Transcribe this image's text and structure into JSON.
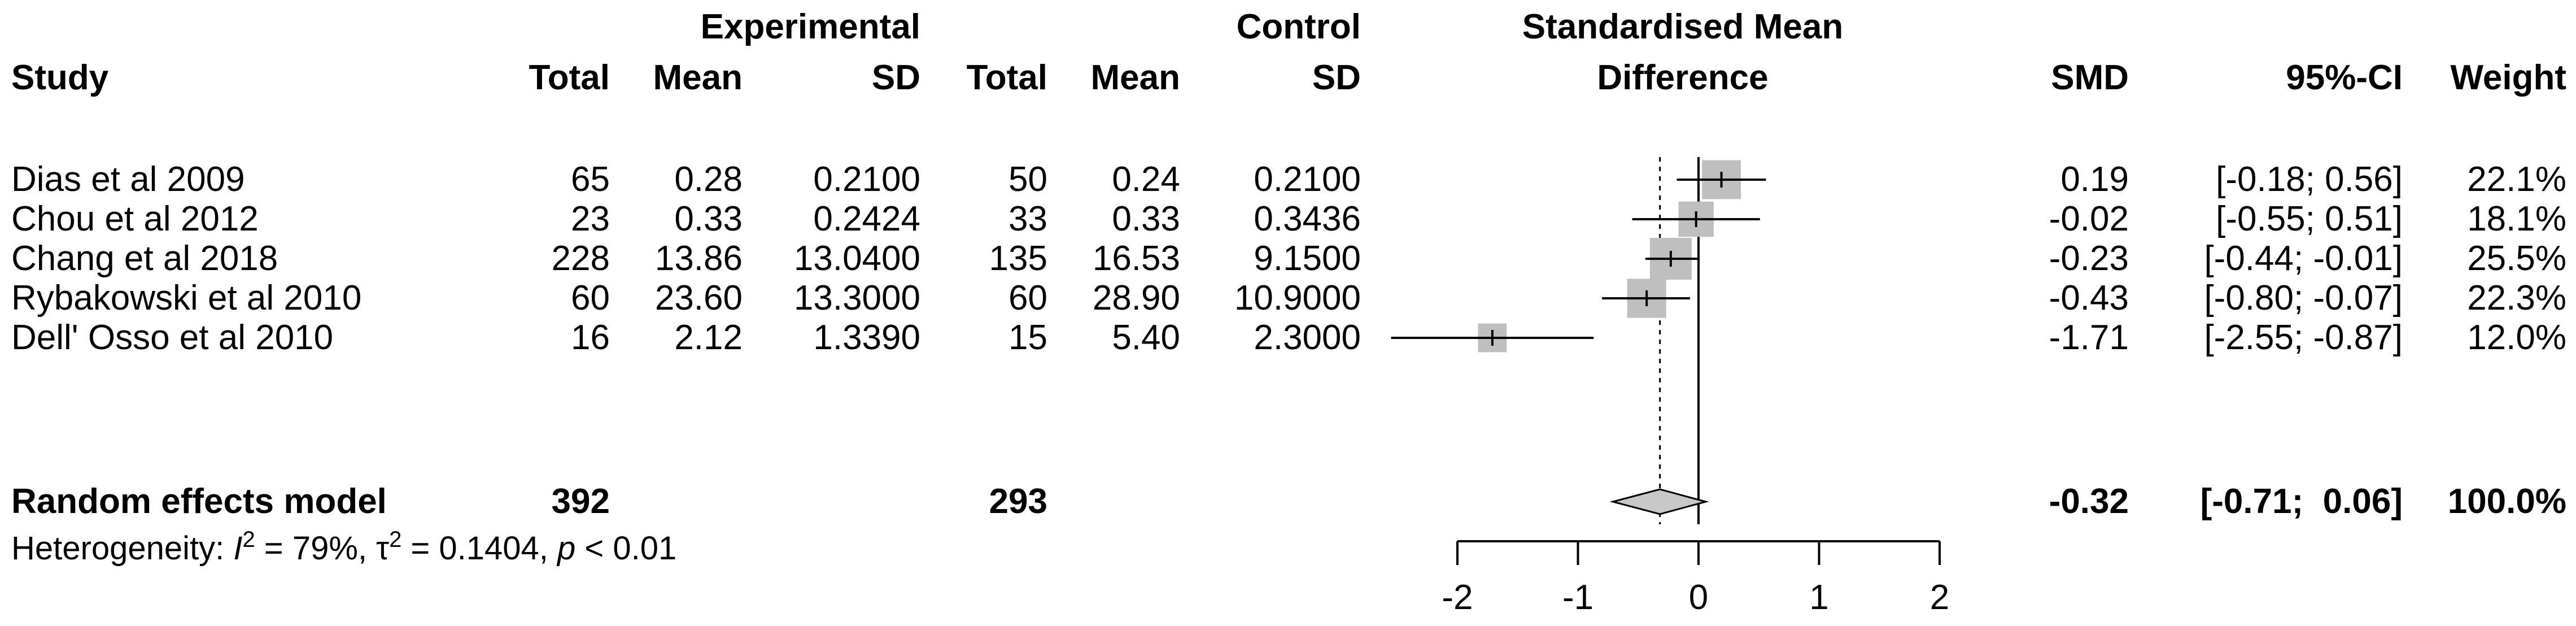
{
  "chart_data": {
    "type": "forest",
    "headers": {
      "study": "Study",
      "experimental": "Experimental",
      "control": "Control",
      "total": "Total",
      "mean": "Mean",
      "sd": "SD",
      "effect_line1": "Standardised Mean",
      "effect_line2": "Difference",
      "smd": "SMD",
      "ci": "95%-CI",
      "weight": "Weight"
    },
    "studies": [
      {
        "study": "Dias et al 2009",
        "e_total": "65",
        "e_mean": "0.28",
        "e_sd": "0.2100",
        "c_total": "50",
        "c_mean": "0.24",
        "c_sd": "0.2100",
        "smd": 0.19,
        "lower": -0.18,
        "upper": 0.56,
        "weight": 22.1,
        "smd_text": "0.19",
        "ci_text": "[-0.18;  0.56]",
        "weight_text": "22.1%"
      },
      {
        "study": "Chou et al 2012",
        "e_total": "23",
        "e_mean": "0.33",
        "e_sd": "0.2424",
        "c_total": "33",
        "c_mean": "0.33",
        "c_sd": "0.3436",
        "smd": -0.02,
        "lower": -0.55,
        "upper": 0.51,
        "weight": 18.1,
        "smd_text": "-0.02",
        "ci_text": "[-0.55;  0.51]",
        "weight_text": "18.1%"
      },
      {
        "study": "Chang et al 2018",
        "e_total": "228",
        "e_mean": "13.86",
        "e_sd": "13.0400",
        "c_total": "135",
        "c_mean": "16.53",
        "c_sd": "9.1500",
        "smd": -0.23,
        "lower": -0.44,
        "upper": -0.01,
        "weight": 25.5,
        "smd_text": "-0.23",
        "ci_text": "[-0.44; -0.01]",
        "weight_text": "25.5%"
      },
      {
        "study": "Rybakowski et al 2010",
        "e_total": "60",
        "e_mean": "23.60",
        "e_sd": "13.3000",
        "c_total": "60",
        "c_mean": "28.90",
        "c_sd": "10.9000",
        "smd": -0.43,
        "lower": -0.8,
        "upper": -0.07,
        "weight": 22.3,
        "smd_text": "-0.43",
        "ci_text": "[-0.80; -0.07]",
        "weight_text": "22.3%"
      },
      {
        "study": "Dell' Osso et al 2010",
        "e_total": "16",
        "e_mean": "2.12",
        "e_sd": "1.3390",
        "c_total": "15",
        "c_mean": "5.40",
        "c_sd": "2.3000",
        "smd": -1.71,
        "lower": -2.55,
        "upper": -0.87,
        "weight": 12.0,
        "smd_text": "-1.71",
        "ci_text": "[-2.55; -0.87]",
        "weight_text": "12.0%"
      }
    ],
    "pooled": {
      "label": "Random effects model",
      "e_total": "392",
      "c_total": "293",
      "smd": -0.32,
      "lower": -0.71,
      "upper": 0.06,
      "smd_text": "-0.32",
      "ci_text": "[-0.71;  0.06]",
      "weight_text": "100.0%"
    },
    "heterogeneity": {
      "prefix": "Heterogeneity: ",
      "i_symbol": "I",
      "i_sup": "2",
      "i_value": " = 79%, ",
      "tau_symbol": "τ",
      "tau_sup": "2",
      "tau_value": " = 0.1404, ",
      "p_symbol": "p",
      "p_value": " < 0.01"
    },
    "x_axis": {
      "range": [
        -2,
        2
      ],
      "ticks": [
        -2,
        -1,
        0,
        1,
        2
      ],
      "tick_labels": [
        "-2",
        "-1",
        "0",
        "1",
        "2"
      ]
    },
    "colors": {
      "square": "#bfbfbf",
      "diamond": "#c8c8c8",
      "line": "#000000"
    }
  }
}
